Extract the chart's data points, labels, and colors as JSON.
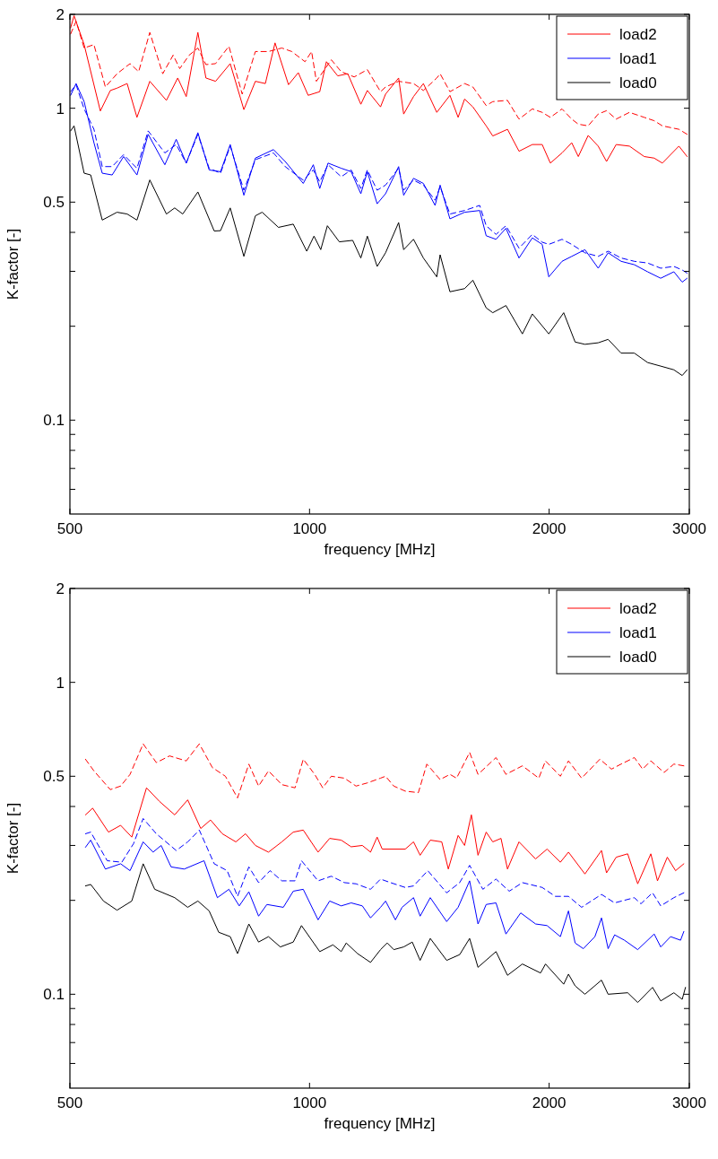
{
  "chart_data": [
    {
      "type": "line",
      "xlabel": "frequency [MHz]",
      "ylabel": "K-factor [-]",
      "log": "xy",
      "legend": "top right",
      "xlim": [
        500,
        3000
      ],
      "xticks": [
        500,
        1000,
        2000,
        3000
      ],
      "ylim": [
        0.05,
        2
      ],
      "yticks": [
        {
          "value": 0.06,
          "label": null
        },
        {
          "value": 0.07,
          "label": null
        },
        {
          "value": 0.08,
          "label": null
        },
        {
          "value": 0.09,
          "label": null
        },
        0.1,
        {
          "value": 0.2,
          "label": null
        },
        {
          "value": 0.3,
          "label": null
        },
        {
          "value": 0.4,
          "label": null
        },
        0.5,
        1,
        2
      ],
      "series": [
        {
          "name": "load2",
          "color": "#ff0000",
          "line_style": "solid",
          "x": [
            501,
            506,
            521,
            546,
            562,
            573,
            590,
            607,
            630,
            661,
            683,
            700,
            724,
            741,
            762,
            795,
            827,
            855,
            880,
            905,
            941,
            968,
            996,
            1030,
            1050,
            1085,
            1117,
            1160,
            1182,
            1228,
            1246,
            1294,
            1313,
            1351,
            1390,
            1445,
            1501,
            1537,
            1566,
            1604,
            1667,
            1699,
            1773,
            1833,
            1905,
            1960,
            2007,
            2076,
            2135,
            2176,
            2239,
            2305,
            2361,
            2428,
            2523,
            2633,
            2710,
            2775,
            2911,
            2981
          ],
          "values": [
            1.81,
            1.98,
            1.6,
            0.98,
            1.14,
            1.16,
            1.2,
            0.935,
            1.22,
            1.06,
            1.25,
            1.09,
            1.75,
            1.25,
            1.22,
            1.39,
            0.99,
            1.22,
            1.2,
            1.62,
            1.19,
            1.3,
            1.1,
            1.13,
            1.41,
            1.27,
            1.29,
            1.03,
            1.14,
            1.01,
            1.11,
            1.25,
            0.958,
            1.09,
            1.2,
            0.97,
            1.1,
            0.935,
            1.07,
            1.01,
            0.878,
            0.815,
            0.856,
            0.728,
            0.765,
            0.765,
            0.667,
            0.719,
            0.775,
            0.7,
            0.818,
            0.756,
            0.675,
            0.765,
            0.756,
            0.7,
            0.692,
            0.667,
            0.756,
            0.7
          ]
        },
        {
          "name": "load1",
          "color": "#0000ff",
          "line_style": "solid",
          "x": [
            501,
            509,
            521,
            536,
            549,
            565,
            584,
            607,
            627,
            658,
            680,
            700,
            724,
            748,
            773,
            795,
            827,
            855,
            901,
            932,
            982,
            1011,
            1030,
            1055,
            1096,
            1128,
            1160,
            1182,
            1216,
            1246,
            1294,
            1313,
            1351,
            1390,
            1438,
            1459,
            1501,
            1566,
            1636,
            1667,
            1715,
            1765,
            1833,
            1905,
            1960,
            1998,
            2076,
            2135,
            2218,
            2305,
            2372,
            2463,
            2559,
            2659,
            2762,
            2869,
            2939,
            2981
          ],
          "values": [
            1.1,
            1.2,
            1.05,
            0.775,
            0.619,
            0.611,
            0.7,
            0.611,
            0.825,
            0.659,
            0.795,
            0.667,
            0.835,
            0.634,
            0.626,
            0.765,
            0.526,
            0.692,
            0.737,
            0.675,
            0.574,
            0.659,
            0.553,
            0.667,
            0.642,
            0.626,
            0.532,
            0.626,
            0.494,
            0.532,
            0.65,
            0.526,
            0.596,
            0.574,
            0.488,
            0.567,
            0.442,
            0.464,
            0.47,
            0.39,
            0.38,
            0.412,
            0.331,
            0.384,
            0.366,
            0.288,
            0.323,
            0.335,
            0.352,
            0.307,
            0.344,
            0.323,
            0.315,
            0.299,
            0.285,
            0.299,
            0.277,
            0.285
          ]
        },
        {
          "name": "load0",
          "color": "#000000",
          "line_style": "solid",
          "x": [
            501,
            506,
            521,
            531,
            549,
            573,
            590,
            607,
            630,
            661,
            677,
            693,
            724,
            759,
            773,
            795,
            827,
            855,
            872,
            914,
            954,
            992,
            1013,
            1033,
            1053,
            1090,
            1133,
            1160,
            1182,
            1216,
            1246,
            1294,
            1313,
            1351,
            1390,
            1445,
            1459,
            1501,
            1566,
            1604,
            1667,
            1699,
            1765,
            1851,
            1905,
            1998,
            2086,
            2156,
            2218,
            2305,
            2372,
            2463,
            2559,
            2659,
            2762,
            2869,
            2939,
            2981
          ],
          "values": [
            0.846,
            0.878,
            0.619,
            0.611,
            0.438,
            0.464,
            0.458,
            0.438,
            0.589,
            0.458,
            0.479,
            0.458,
            0.539,
            0.404,
            0.405,
            0.479,
            0.335,
            0.452,
            0.464,
            0.415,
            0.425,
            0.348,
            0.389,
            0.352,
            0.42,
            0.373,
            0.377,
            0.331,
            0.389,
            0.311,
            0.344,
            0.43,
            0.352,
            0.38,
            0.331,
            0.288,
            0.339,
            0.258,
            0.264,
            0.281,
            0.229,
            0.221,
            0.233,
            0.189,
            0.219,
            0.189,
            0.221,
            0.178,
            0.175,
            0.177,
            0.1815,
            0.164,
            0.164,
            0.153,
            0.149,
            0.145,
            0.139,
            0.145
          ]
        },
        {
          "color": "#ff0000",
          "line_style": "dashed",
          "x": [
            501,
            509,
            521,
            536,
            554,
            573,
            595,
            610,
            630,
            654,
            674,
            687,
            706,
            724,
            741,
            762,
            792,
            823,
            855,
            888,
            923,
            950,
            987,
            1006,
            1020,
            1065,
            1096,
            1138,
            1182,
            1228,
            1246,
            1294,
            1351,
            1390,
            1445,
            1459,
            1501,
            1566,
            1604,
            1667,
            1699,
            1773,
            1833,
            1905,
            1960,
            2007,
            2076,
            2135,
            2176,
            2239,
            2305,
            2361,
            2428,
            2523,
            2633,
            2710,
            2775,
            2911,
            2981
          ],
          "values": [
            1.73,
            1.9,
            1.56,
            1.6,
            1.17,
            1.29,
            1.39,
            1.31,
            1.75,
            1.29,
            1.48,
            1.34,
            1.48,
            1.56,
            1.38,
            1.39,
            1.58,
            1.11,
            1.52,
            1.52,
            1.56,
            1.52,
            1.41,
            1.52,
            1.22,
            1.43,
            1.31,
            1.26,
            1.33,
            1.13,
            1.17,
            1.22,
            1.2,
            1.14,
            1.25,
            1.29,
            1.13,
            1.2,
            1.17,
            1.02,
            1.05,
            1.06,
            0.923,
            0.995,
            0.97,
            0.935,
            0.995,
            0.923,
            0.889,
            0.878,
            0.958,
            0.982,
            0.923,
            0.97,
            0.935,
            0.912,
            0.878,
            0.856,
            0.825
          ]
        },
        {
          "color": "#0000ff",
          "line_style": "dashed",
          "x": [
            501,
            509,
            521,
            536,
            549,
            565,
            584,
            607,
            627,
            658,
            680,
            700,
            724,
            748,
            773,
            795,
            827,
            855,
            901,
            932,
            982,
            1011,
            1030,
            1055,
            1096,
            1128,
            1160,
            1182,
            1216,
            1246,
            1294,
            1313,
            1351,
            1390,
            1438,
            1459,
            1501,
            1566,
            1636,
            1667,
            1715,
            1765,
            1833,
            1905,
            1960,
            1998,
            2076,
            2135,
            2218,
            2305,
            2372,
            2463,
            2559,
            2659,
            2762,
            2869,
            2939,
            2981
          ],
          "values": [
            1.13,
            1.19,
            0.995,
            0.856,
            0.65,
            0.65,
            0.71,
            0.642,
            0.846,
            0.719,
            0.765,
            0.667,
            0.825,
            0.642,
            0.619,
            0.756,
            0.546,
            0.684,
            0.719,
            0.65,
            0.588,
            0.634,
            0.581,
            0.659,
            0.603,
            0.634,
            0.553,
            0.634,
            0.546,
            0.567,
            0.642,
            0.546,
            0.588,
            0.567,
            0.507,
            0.56,
            0.458,
            0.47,
            0.488,
            0.42,
            0.394,
            0.42,
            0.356,
            0.394,
            0.372,
            0.366,
            0.38,
            0.366,
            0.344,
            0.335,
            0.348,
            0.331,
            0.323,
            0.319,
            0.307,
            0.311,
            0.303,
            0.296
          ]
        }
      ]
    },
    {
      "type": "line",
      "xlabel": "frequency [MHz]",
      "ylabel": "K-factor [-]",
      "log": "xy",
      "legend": "top right",
      "xlim": [
        500,
        3000
      ],
      "xticks": [
        500,
        1000,
        2000,
        3000
      ],
      "ylim": [
        0.05,
        2
      ],
      "yticks": [
        {
          "value": 0.06,
          "label": null
        },
        {
          "value": 0.07,
          "label": null
        },
        {
          "value": 0.08,
          "label": null
        },
        {
          "value": 0.09,
          "label": null
        },
        0.1,
        {
          "value": 0.2,
          "label": null
        },
        {
          "value": 0.3,
          "label": null
        },
        {
          "value": 0.4,
          "label": null
        },
        0.5,
        1,
        2
      ],
      "series": [
        {
          "name": "load2",
          "color": "#ff0000",
          "line_style": "solid",
          "x": [
            523,
            534,
            559,
            579,
            598,
            624,
            648,
            677,
            703,
            730,
            751,
            777,
            808,
            831,
            855,
            888,
            923,
            954,
            982,
            1025,
            1060,
            1096,
            1128,
            1165,
            1193,
            1216,
            1234,
            1319,
            1351,
            1377,
            1418,
            1466,
            1494,
            1537,
            1566,
            1597,
            1628,
            1667,
            1699,
            1740,
            1773,
            1833,
            1923,
            1988,
            2066,
            2115,
            2218,
            2327,
            2361,
            2428,
            2510,
            2584,
            2684,
            2736,
            2815,
            2883,
            2953
          ],
          "values": [
            0.376,
            0.395,
            0.331,
            0.348,
            0.319,
            0.459,
            0.415,
            0.376,
            0.42,
            0.34,
            0.362,
            0.327,
            0.308,
            0.327,
            0.3,
            0.2855,
            0.308,
            0.331,
            0.336,
            0.2855,
            0.316,
            0.312,
            0.297,
            0.3,
            0.2855,
            0.319,
            0.292,
            0.292,
            0.308,
            0.279,
            0.312,
            0.308,
            0.252,
            0.323,
            0.3,
            0.376,
            0.279,
            0.331,
            0.308,
            0.316,
            0.252,
            0.308,
            0.2716,
            0.292,
            0.265,
            0.2855,
            0.243,
            0.289,
            0.245,
            0.275,
            0.282,
            0.226,
            0.282,
            0.231,
            0.275,
            0.249,
            0.262
          ]
        },
        {
          "name": "load1",
          "color": "#0000ff",
          "line_style": "solid",
          "x": [
            523,
            531,
            554,
            579,
            595,
            618,
            636,
            651,
            670,
            696,
            737,
            766,
            792,
            816,
            839,
            863,
            884,
            927,
            954,
            982,
            1025,
            1060,
            1096,
            1128,
            1165,
            1193,
            1228,
            1246,
            1282,
            1307,
            1351,
            1377,
            1418,
            1487,
            1537,
            1589,
            1628,
            1667,
            1715,
            1765,
            1842,
            1923,
            1988,
            2066,
            2115,
            2156,
            2208,
            2283,
            2327,
            2372,
            2417,
            2487,
            2584,
            2710,
            2762,
            2842,
            2925,
            2953
          ],
          "values": [
            0.296,
            0.312,
            0.252,
            0.262,
            0.249,
            0.308,
            0.2855,
            0.3,
            0.256,
            0.252,
            0.268,
            0.204,
            0.217,
            0.192,
            0.213,
            0.178,
            0.194,
            0.19,
            0.214,
            0.217,
            0.1732,
            0.199,
            0.192,
            0.1963,
            0.192,
            0.1757,
            0.19,
            0.199,
            0.1732,
            0.19,
            0.204,
            0.178,
            0.204,
            0.171,
            0.19,
            0.231,
            0.168,
            0.194,
            0.1963,
            0.156,
            0.1823,
            0.168,
            0.166,
            0.153,
            0.185,
            0.146,
            0.14,
            0.153,
            0.1757,
            0.14,
            0.155,
            0.149,
            0.139,
            0.156,
            0.1418,
            0.153,
            0.149,
            0.159
          ]
        },
        {
          "name": "load0",
          "color": "#000000",
          "line_style": "solid",
          "x": [
            523,
            531,
            551,
            573,
            598,
            618,
            639,
            677,
            703,
            724,
            748,
            769,
            795,
            812,
            839,
            863,
            888,
            919,
            954,
            977,
            1030,
            1070,
            1096,
            1112,
            1149,
            1193,
            1228,
            1252,
            1276,
            1313,
            1346,
            1377,
            1418,
            1487,
            1544,
            1589,
            1628,
            1715,
            1773,
            1851,
            1951,
            1979,
            2086,
            2115,
            2156,
            2218,
            2327,
            2372,
            2510,
            2584,
            2697,
            2762,
            2869,
            2939,
            2967
          ],
          "values": [
            0.2225,
            0.2249,
            0.199,
            0.186,
            0.199,
            0.262,
            0.217,
            0.204,
            0.19,
            0.199,
            0.185,
            0.158,
            0.153,
            0.135,
            0.168,
            0.147,
            0.153,
            0.1418,
            0.147,
            0.166,
            0.137,
            0.144,
            0.137,
            0.146,
            0.135,
            0.1265,
            0.139,
            0.146,
            0.139,
            0.1418,
            0.147,
            0.1284,
            0.151,
            0.1284,
            0.134,
            0.151,
            0.122,
            0.137,
            0.115,
            0.125,
            0.117,
            0.125,
            0.1077,
            0.116,
            0.1064,
            0.1,
            0.111,
            0.1,
            0.1011,
            0.0941,
            0.1052,
            0.0952,
            0.1011,
            0.0963,
            0.1052
          ]
        },
        {
          "color": "#ff0000",
          "line_style": "dashed",
          "x": [
            523,
            536,
            562,
            579,
            595,
            618,
            642,
            667,
            700,
            727,
            755,
            784,
            812,
            839,
            863,
            888,
            923,
            959,
            982,
            1015,
            1039,
            1065,
            1106,
            1144,
            1182,
            1228,
            1246,
            1276,
            1319,
            1370,
            1404,
            1459,
            1501,
            1530,
            1589,
            1628,
            1715,
            1765,
            1851,
            1941,
            1979,
            2066,
            2115,
            2197,
            2316,
            2395,
            2463,
            2559,
            2621,
            2684,
            2789,
            2869,
            2953
          ],
          "values": [
            0.567,
            0.52,
            0.453,
            0.465,
            0.507,
            0.635,
            0.553,
            0.581,
            0.56,
            0.635,
            0.533,
            0.5,
            0.426,
            0.547,
            0.465,
            0.52,
            0.47,
            0.459,
            0.567,
            0.507,
            0.459,
            0.5,
            0.493,
            0.465,
            0.476,
            0.493,
            0.5,
            0.465,
            0.448,
            0.443,
            0.547,
            0.488,
            0.507,
            0.493,
            0.596,
            0.507,
            0.574,
            0.507,
            0.54,
            0.493,
            0.56,
            0.5,
            0.56,
            0.493,
            0.567,
            0.527,
            0.547,
            0.574,
            0.527,
            0.56,
            0.514,
            0.547,
            0.54
          ]
        },
        {
          "color": "#0000ff",
          "line_style": "dashed",
          "x": [
            523,
            531,
            557,
            581,
            601,
            618,
            642,
            680,
            703,
            727,
            759,
            788,
            812,
            839,
            863,
            892,
            923,
            959,
            977,
            1025,
            1065,
            1106,
            1144,
            1193,
            1228,
            1264,
            1319,
            1351,
            1408,
            1487,
            1544,
            1589,
            1651,
            1715,
            1782,
            1851,
            1960,
            2036,
            2115,
            2197,
            2327,
            2417,
            2559,
            2608,
            2697,
            2762,
            2869,
            2953
          ],
          "values": [
            0.327,
            0.331,
            0.268,
            0.265,
            0.304,
            0.366,
            0.327,
            0.289,
            0.308,
            0.336,
            0.262,
            0.249,
            0.206,
            0.256,
            0.228,
            0.249,
            0.231,
            0.231,
            0.268,
            0.231,
            0.239,
            0.228,
            0.226,
            0.217,
            0.234,
            0.228,
            0.22,
            0.2225,
            0.249,
            0.2115,
            0.228,
            0.259,
            0.217,
            0.234,
            0.214,
            0.228,
            0.22,
            0.206,
            0.206,
            0.19,
            0.209,
            0.1963,
            0.204,
            0.195,
            0.2115,
            0.192,
            0.204,
            0.2115
          ]
        }
      ]
    }
  ]
}
